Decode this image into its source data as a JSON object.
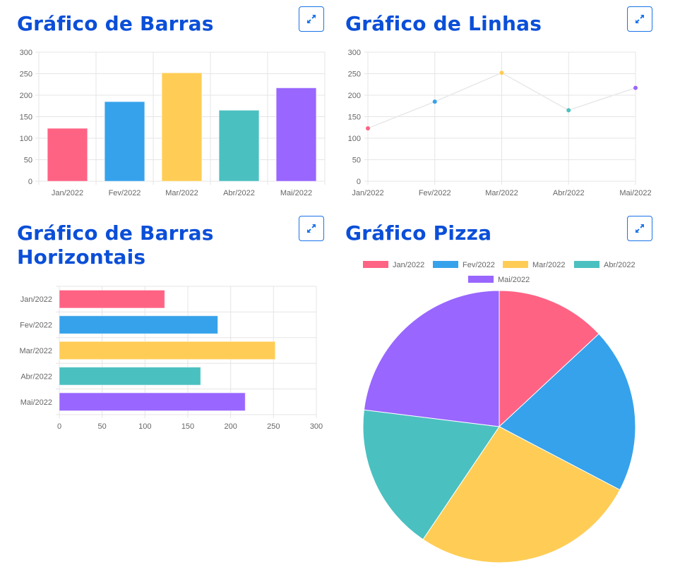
{
  "panels": [
    {
      "title": "Gráfico de Barras",
      "expand_icon": "expand-arrows-icon"
    },
    {
      "title": "Gráfico de Linhas",
      "expand_icon": "expand-arrows-icon"
    },
    {
      "title": "Gráfico de Barras Horizontais",
      "expand_icon": "expand-arrows-icon"
    },
    {
      "title": "Gráfico Pizza",
      "expand_icon": "expand-arrows-icon"
    }
  ],
  "colors": {
    "title": "#0b4fd8",
    "button": "#1a73e8"
  },
  "chart_data": [
    {
      "type": "bar",
      "categories": [
        "Jan/2022",
        "Fev/2022",
        "Mar/2022",
        "Abr/2022",
        "Mai/2022"
      ],
      "values": [
        123,
        185,
        252,
        165,
        217
      ],
      "colors": [
        "#ff6384",
        "#36a2eb",
        "#ffcd56",
        "#4bc0c0",
        "#9966ff"
      ],
      "ylim": [
        0,
        300
      ],
      "yticks": [
        0,
        50,
        100,
        150,
        200,
        250,
        300
      ],
      "grid": true
    },
    {
      "type": "line",
      "categories": [
        "Jan/2022",
        "Fev/2022",
        "Mar/2022",
        "Abr/2022",
        "Mai/2022"
      ],
      "values": [
        123,
        185,
        252,
        165,
        217
      ],
      "colors": [
        "#ff6384",
        "#36a2eb",
        "#ffcd56",
        "#4bc0c0",
        "#9966ff"
      ],
      "line_color": "#e8e8e8",
      "ylim": [
        0,
        300
      ],
      "yticks": [
        0,
        50,
        100,
        150,
        200,
        250,
        300
      ],
      "grid": true
    },
    {
      "type": "bar",
      "orientation": "horizontal",
      "categories": [
        "Jan/2022",
        "Fev/2022",
        "Mar/2022",
        "Abr/2022",
        "Mai/2022"
      ],
      "values": [
        123,
        185,
        252,
        165,
        217
      ],
      "colors": [
        "#ff6384",
        "#36a2eb",
        "#ffcd56",
        "#4bc0c0",
        "#9966ff"
      ],
      "xlim": [
        0,
        300
      ],
      "xticks": [
        0,
        50,
        100,
        150,
        200,
        250,
        300
      ],
      "grid": true
    },
    {
      "type": "pie",
      "categories": [
        "Jan/2022",
        "Fev/2022",
        "Mar/2022",
        "Abr/2022",
        "Mai/2022"
      ],
      "values": [
        123,
        185,
        252,
        165,
        217
      ],
      "colors": [
        "#ff6384",
        "#36a2eb",
        "#ffcd56",
        "#4bc0c0",
        "#9966ff"
      ],
      "legend": "top"
    }
  ]
}
